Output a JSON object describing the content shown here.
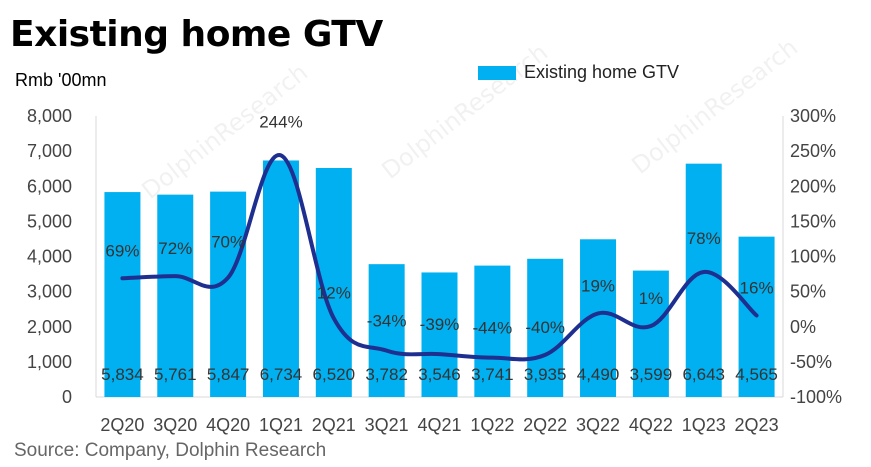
{
  "title": "Existing home GTV",
  "unit": "Rmb '00mn",
  "source": "Source: Company, Dolphin Research",
  "watermark": "DolphinResearch",
  "chart_data": {
    "type": "bar",
    "categories": [
      "2Q20",
      "3Q20",
      "4Q20",
      "1Q21",
      "2Q21",
      "3Q21",
      "4Q21",
      "1Q22",
      "2Q22",
      "3Q22",
      "4Q22",
      "1Q23",
      "2Q23"
    ],
    "series": [
      {
        "name": "Existing home GTV",
        "type": "bar",
        "axis": "left",
        "color": "#00B0F0",
        "values": [
          5834,
          5761,
          5847,
          6734,
          6520,
          3782,
          3546,
          3741,
          3935,
          4490,
          3599,
          6643,
          4565
        ],
        "labels": [
          "5,834",
          "5,761",
          "5,847",
          "6,734",
          "6,520",
          "3,782",
          "3,546",
          "3,741",
          "3,935",
          "4,490",
          "3,599",
          "6,643",
          "4,565"
        ]
      },
      {
        "type": "line",
        "axis": "right",
        "color": "#1F2F8F",
        "values": [
          69,
          72,
          70,
          244,
          12,
          -34,
          -39,
          -44,
          -40,
          19,
          1,
          78,
          16
        ],
        "labels": [
          "69%",
          "72%",
          "70%",
          "244%",
          "12%",
          "-34%",
          "-39%",
          "-44%",
          "-40%",
          "19%",
          "1%",
          "78%",
          "16%"
        ]
      }
    ],
    "left_axis": {
      "min": 0,
      "max": 8000,
      "step": 1000,
      "tick_labels": [
        "0",
        "1,000",
        "2,000",
        "3,000",
        "4,000",
        "5,000",
        "6,000",
        "7,000",
        "8,000"
      ]
    },
    "right_axis": {
      "min": -100,
      "max": 300,
      "step": 50,
      "tick_labels": [
        "-100%",
        "-50%",
        "0%",
        "50%",
        "100%",
        "150%",
        "200%",
        "250%",
        "300%"
      ]
    },
    "legend_position": "top-right",
    "grid": false
  }
}
